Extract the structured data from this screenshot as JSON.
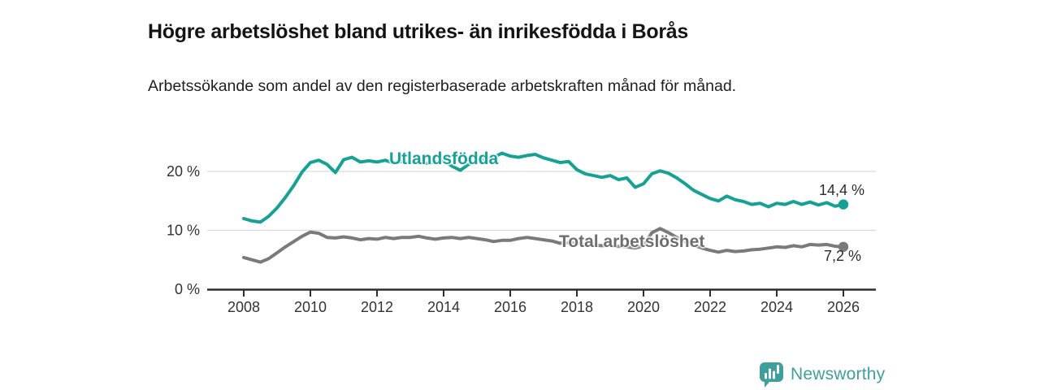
{
  "header": {
    "title": "Högre arbetslöshet bland utrikes- än inrikesfödda i Borås",
    "subtitle": "Arbetssökande som andel av den registerbaserade arbetskraften månad för månad."
  },
  "colors": {
    "teal": "#16a195",
    "gray": "#7a7a7a",
    "gray_label": "#6e6e6e",
    "axis": "#2e2e2e",
    "grid": "#d9d9d9",
    "tick_text": "#333333",
    "brand_teal": "#3f9f9c"
  },
  "chart_data": {
    "type": "line",
    "title": "Högre arbetslöshet bland utrikes- än inrikesfödda i Borås",
    "subtitle": "Arbetssökande som andel av den registerbaserade arbetskraften månad för månad.",
    "ylabel": "",
    "xlabel": "",
    "ylim": [
      0,
      25
    ],
    "xlim": [
      2007,
      2027
    ],
    "grid": "horizontal",
    "legend_position": "inline-labels",
    "yticks": [
      {
        "v": 0,
        "label": "0 %"
      },
      {
        "v": 10,
        "label": "10 %"
      },
      {
        "v": 20,
        "label": "20 %"
      }
    ],
    "xticks": [
      {
        "v": 2008,
        "label": "2008"
      },
      {
        "v": 2010,
        "label": "2010"
      },
      {
        "v": 2012,
        "label": "2012"
      },
      {
        "v": 2014,
        "label": "2014"
      },
      {
        "v": 2016,
        "label": "2016"
      },
      {
        "v": 2018,
        "label": "2018"
      },
      {
        "v": 2020,
        "label": "2020"
      },
      {
        "v": 2022,
        "label": "2022"
      },
      {
        "v": 2024,
        "label": "2024"
      },
      {
        "v": 2026,
        "label": "2026"
      }
    ],
    "x": [
      2008.0,
      2008.25,
      2008.5,
      2008.75,
      2009.0,
      2009.25,
      2009.5,
      2009.75,
      2010.0,
      2010.25,
      2010.5,
      2010.75,
      2011.0,
      2011.25,
      2011.5,
      2011.75,
      2012.0,
      2012.25,
      2012.5,
      2012.75,
      2013.0,
      2013.25,
      2013.5,
      2013.75,
      2014.0,
      2014.25,
      2014.5,
      2014.75,
      2015.0,
      2015.25,
      2015.5,
      2015.75,
      2016.0,
      2016.25,
      2016.5,
      2016.75,
      2017.0,
      2017.25,
      2017.5,
      2017.75,
      2018.0,
      2018.25,
      2018.5,
      2018.75,
      2019.0,
      2019.25,
      2019.5,
      2019.75,
      2020.0,
      2020.25,
      2020.5,
      2020.75,
      2021.0,
      2021.25,
      2021.5,
      2021.75,
      2022.0,
      2022.25,
      2022.5,
      2022.75,
      2023.0,
      2023.25,
      2023.5,
      2023.75,
      2024.0,
      2024.25,
      2024.5,
      2024.75,
      2025.0,
      2025.25,
      2025.5,
      2025.75,
      2026.0
    ],
    "series": [
      {
        "name": "Utlandsfödda",
        "label": "Utlandsfödda",
        "end_label": "14,4 %",
        "end_value": 14.4,
        "color": "#16a195",
        "values": [
          12.0,
          11.6,
          11.4,
          12.4,
          13.8,
          15.6,
          17.6,
          19.9,
          21.5,
          21.9,
          21.2,
          19.8,
          22.0,
          22.4,
          21.6,
          21.8,
          21.6,
          21.9,
          21.4,
          21.7,
          21.5,
          21.7,
          21.4,
          21.6,
          21.8,
          20.9,
          20.2,
          21.2,
          21.8,
          22.1,
          22.4,
          23.1,
          22.6,
          22.4,
          22.7,
          22.9,
          22.3,
          21.9,
          21.5,
          21.7,
          20.3,
          19.6,
          19.3,
          19.0,
          19.3,
          18.6,
          18.9,
          17.3,
          17.9,
          19.6,
          20.1,
          19.7,
          18.9,
          17.9,
          16.8,
          16.1,
          15.4,
          15.0,
          15.8,
          15.2,
          14.9,
          14.4,
          14.6,
          14.0,
          14.6,
          14.4,
          14.9,
          14.4,
          14.8,
          14.3,
          14.7,
          14.1,
          14.4
        ]
      },
      {
        "name": "Total arbetslöshet",
        "label": "Total arbetslöshet",
        "end_label": "7,2 %",
        "end_value": 7.2,
        "color": "#7a7a7a",
        "values": [
          5.4,
          5.0,
          4.6,
          5.2,
          6.2,
          7.2,
          8.1,
          9.0,
          9.7,
          9.5,
          8.8,
          8.7,
          8.9,
          8.7,
          8.4,
          8.6,
          8.5,
          8.8,
          8.6,
          8.8,
          8.8,
          9.0,
          8.7,
          8.5,
          8.7,
          8.8,
          8.6,
          8.8,
          8.6,
          8.4,
          8.1,
          8.3,
          8.3,
          8.6,
          8.8,
          8.6,
          8.4,
          8.2,
          7.8,
          7.9,
          7.8,
          7.6,
          7.5,
          7.4,
          7.4,
          7.3,
          7.2,
          7.0,
          7.4,
          9.6,
          10.3,
          9.6,
          8.8,
          8.1,
          7.5,
          7.0,
          6.6,
          6.3,
          6.6,
          6.4,
          6.5,
          6.7,
          6.8,
          7.0,
          7.2,
          7.1,
          7.4,
          7.2,
          7.6,
          7.5,
          7.6,
          7.3,
          7.2
        ]
      }
    ]
  },
  "footer": {
    "brand": "Newsworthy"
  }
}
